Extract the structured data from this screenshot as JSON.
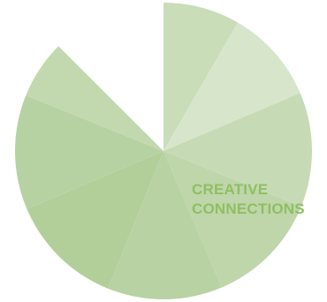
{
  "chart_data": {
    "type": "pie",
    "title": "",
    "annotation": [
      "CREATIVE",
      "CONNECTIONS"
    ],
    "slices": [
      {
        "value": 30,
        "color": "#c8ddb8"
      },
      {
        "value": 37,
        "color": "#d7e6cb"
      },
      {
        "value": 45,
        "color": "#c6dbb5"
      },
      {
        "value": 45,
        "color": "#bed6aa"
      },
      {
        "value": 45,
        "color": "#b8d2a3"
      },
      {
        "value": 45,
        "color": "#b2cf9a"
      },
      {
        "value": 45,
        "color": "#b7d2a2"
      },
      {
        "value": 23,
        "color": "#c2d9af"
      }
    ],
    "empty_quadrant": "bottom-right"
  }
}
